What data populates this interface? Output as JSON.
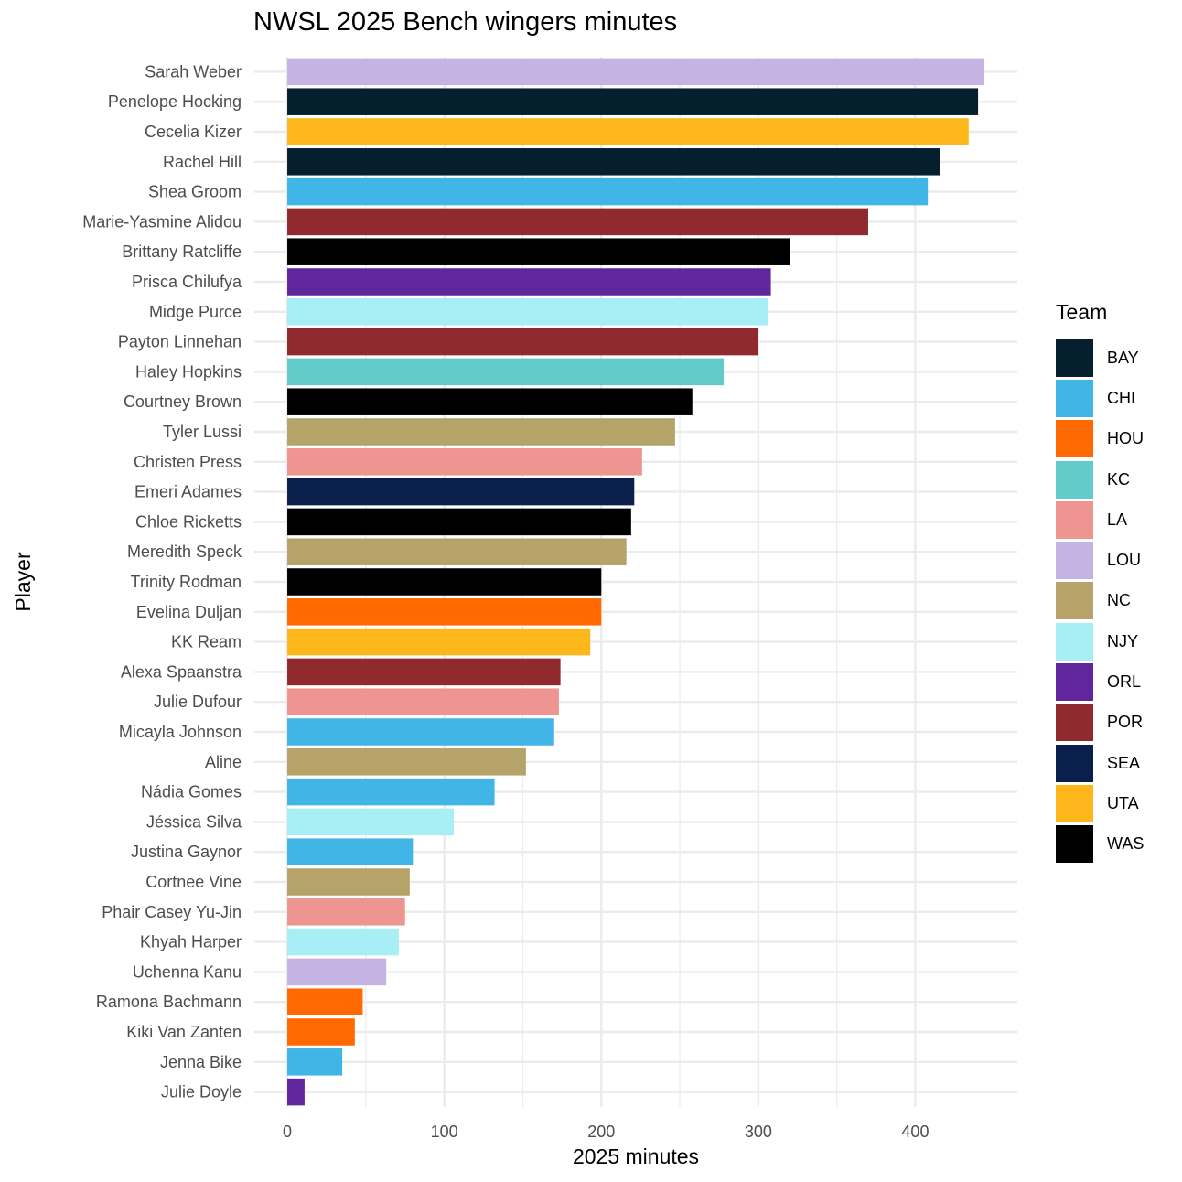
{
  "chart_data": {
    "type": "bar",
    "orientation": "horizontal",
    "title": "NWSL 2025 Bench wingers minutes",
    "xlabel": "2025 minutes",
    "ylabel": "Player",
    "xlim": [
      -21,
      465
    ],
    "xticks": [
      0,
      100,
      200,
      300,
      400
    ],
    "grid": true,
    "legend_title": "Team",
    "legend_position": "right",
    "team_colors": {
      "BAY": "#061f2e",
      "CHI": "#41b6e6",
      "HOU": "#ff6900",
      "KC": "#62cbc9",
      "LA": "#ef9591",
      "LOU": "#c5b4e3",
      "NC": "#b5a36a",
      "NJY": "#a8eef5",
      "ORL": "#60269e",
      "POR": "#902a2e",
      "SEA": "#0b1f4d",
      "UTA": "#fdb71a",
      "WAS": "#000000"
    },
    "bars": [
      {
        "player": "Sarah Weber",
        "team": "LOU",
        "minutes": 444
      },
      {
        "player": "Penelope Hocking",
        "team": "BAY",
        "minutes": 440
      },
      {
        "player": "Cecelia Kizer",
        "team": "UTA",
        "minutes": 434
      },
      {
        "player": "Rachel Hill",
        "team": "BAY",
        "minutes": 416
      },
      {
        "player": "Shea Groom",
        "team": "CHI",
        "minutes": 408
      },
      {
        "player": "Marie-Yasmine Alidou",
        "team": "POR",
        "minutes": 370
      },
      {
        "player": "Brittany Ratcliffe",
        "team": "WAS",
        "minutes": 320
      },
      {
        "player": "Prisca Chilufya",
        "team": "ORL",
        "minutes": 308
      },
      {
        "player": "Midge Purce",
        "team": "NJY",
        "minutes": 306
      },
      {
        "player": "Payton Linnehan",
        "team": "POR",
        "minutes": 300
      },
      {
        "player": "Haley Hopkins",
        "team": "KC",
        "minutes": 278
      },
      {
        "player": "Courtney Brown",
        "team": "WAS",
        "minutes": 258
      },
      {
        "player": "Tyler Lussi",
        "team": "NC",
        "minutes": 247
      },
      {
        "player": "Christen Press",
        "team": "LA",
        "minutes": 226
      },
      {
        "player": "Emeri Adames",
        "team": "SEA",
        "minutes": 221
      },
      {
        "player": "Chloe Ricketts",
        "team": "WAS",
        "minutes": 219
      },
      {
        "player": "Meredith Speck",
        "team": "NC",
        "minutes": 216
      },
      {
        "player": "Trinity Rodman",
        "team": "WAS",
        "minutes": 200
      },
      {
        "player": "Evelina Duljan",
        "team": "HOU",
        "minutes": 200
      },
      {
        "player": "KK Ream",
        "team": "UTA",
        "minutes": 193
      },
      {
        "player": "Alexa Spaanstra",
        "team": "POR",
        "minutes": 174
      },
      {
        "player": "Julie Dufour",
        "team": "LA",
        "minutes": 173
      },
      {
        "player": "Micayla Johnson",
        "team": "CHI",
        "minutes": 170
      },
      {
        "player": "Aline",
        "team": "NC",
        "minutes": 152
      },
      {
        "player": "Nádia Gomes",
        "team": "CHI",
        "minutes": 132
      },
      {
        "player": "Jéssica Silva",
        "team": "NJY",
        "minutes": 106
      },
      {
        "player": "Justina Gaynor",
        "team": "CHI",
        "minutes": 80
      },
      {
        "player": "Cortnee Vine",
        "team": "NC",
        "minutes": 78
      },
      {
        "player": "Phair Casey Yu-Jin",
        "team": "LA",
        "minutes": 75
      },
      {
        "player": "Khyah Harper",
        "team": "NJY",
        "minutes": 71
      },
      {
        "player": "Uchenna Kanu",
        "team": "LOU",
        "minutes": 63
      },
      {
        "player": "Ramona Bachmann",
        "team": "HOU",
        "minutes": 48
      },
      {
        "player": "Kiki Van Zanten",
        "team": "HOU",
        "minutes": 43
      },
      {
        "player": "Jenna Bike",
        "team": "CHI",
        "minutes": 35
      },
      {
        "player": "Julie Doyle",
        "team": "ORL",
        "minutes": 11
      }
    ]
  }
}
